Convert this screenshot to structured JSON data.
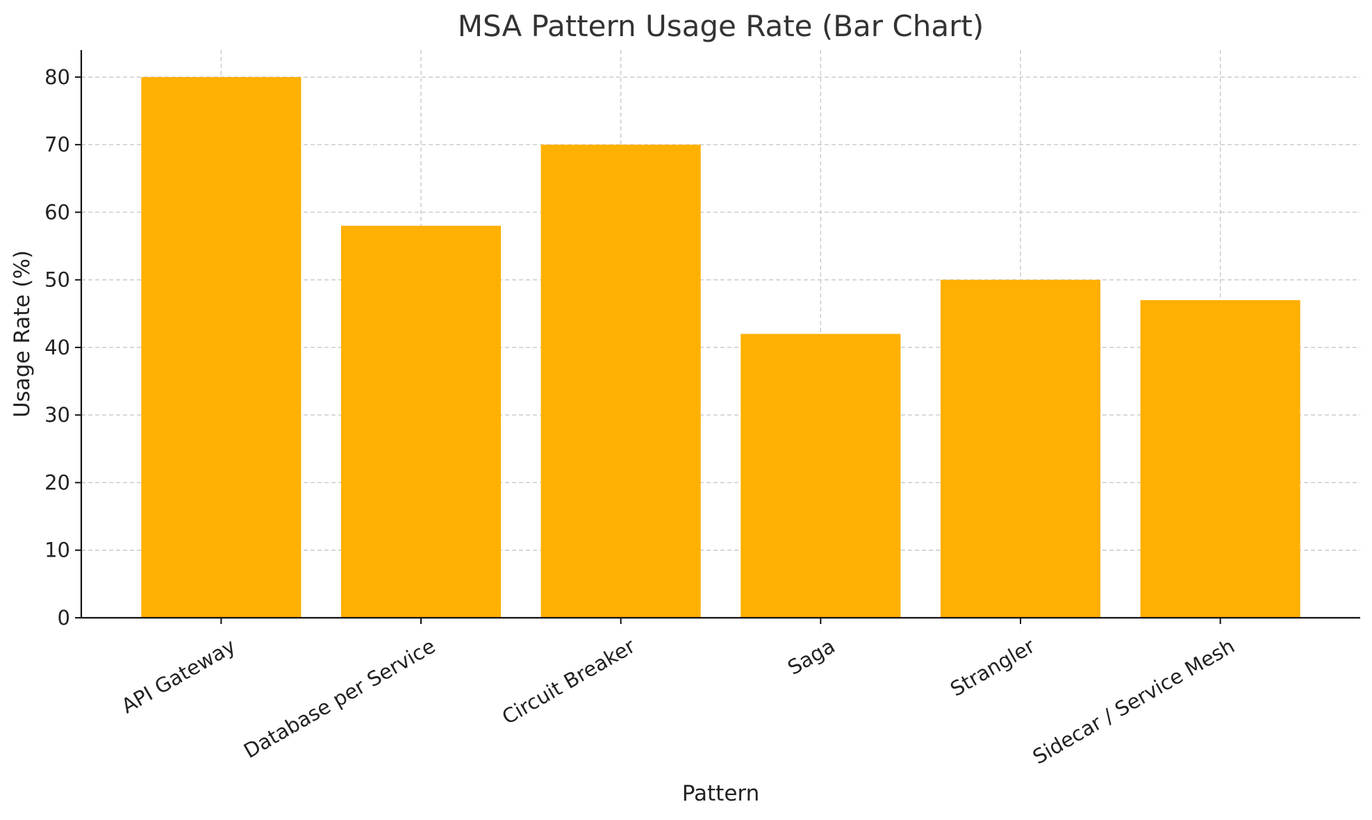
{
  "chart_data": {
    "type": "bar",
    "title": "MSA Pattern Usage Rate (Bar Chart)",
    "xlabel": "Pattern",
    "ylabel": "Usage Rate (%)",
    "categories": [
      "API Gateway",
      "Database per Service",
      "Circuit Breaker",
      "Saga",
      "Strangler",
      "Sidecar / Service Mesh"
    ],
    "values": [
      80,
      58,
      70,
      42,
      50,
      47
    ],
    "ylim": [
      0,
      84
    ],
    "yticks": [
      0,
      10,
      20,
      30,
      40,
      50,
      60,
      70,
      80
    ],
    "bar_color": "#FFB000",
    "grid": true,
    "legend": "none"
  }
}
